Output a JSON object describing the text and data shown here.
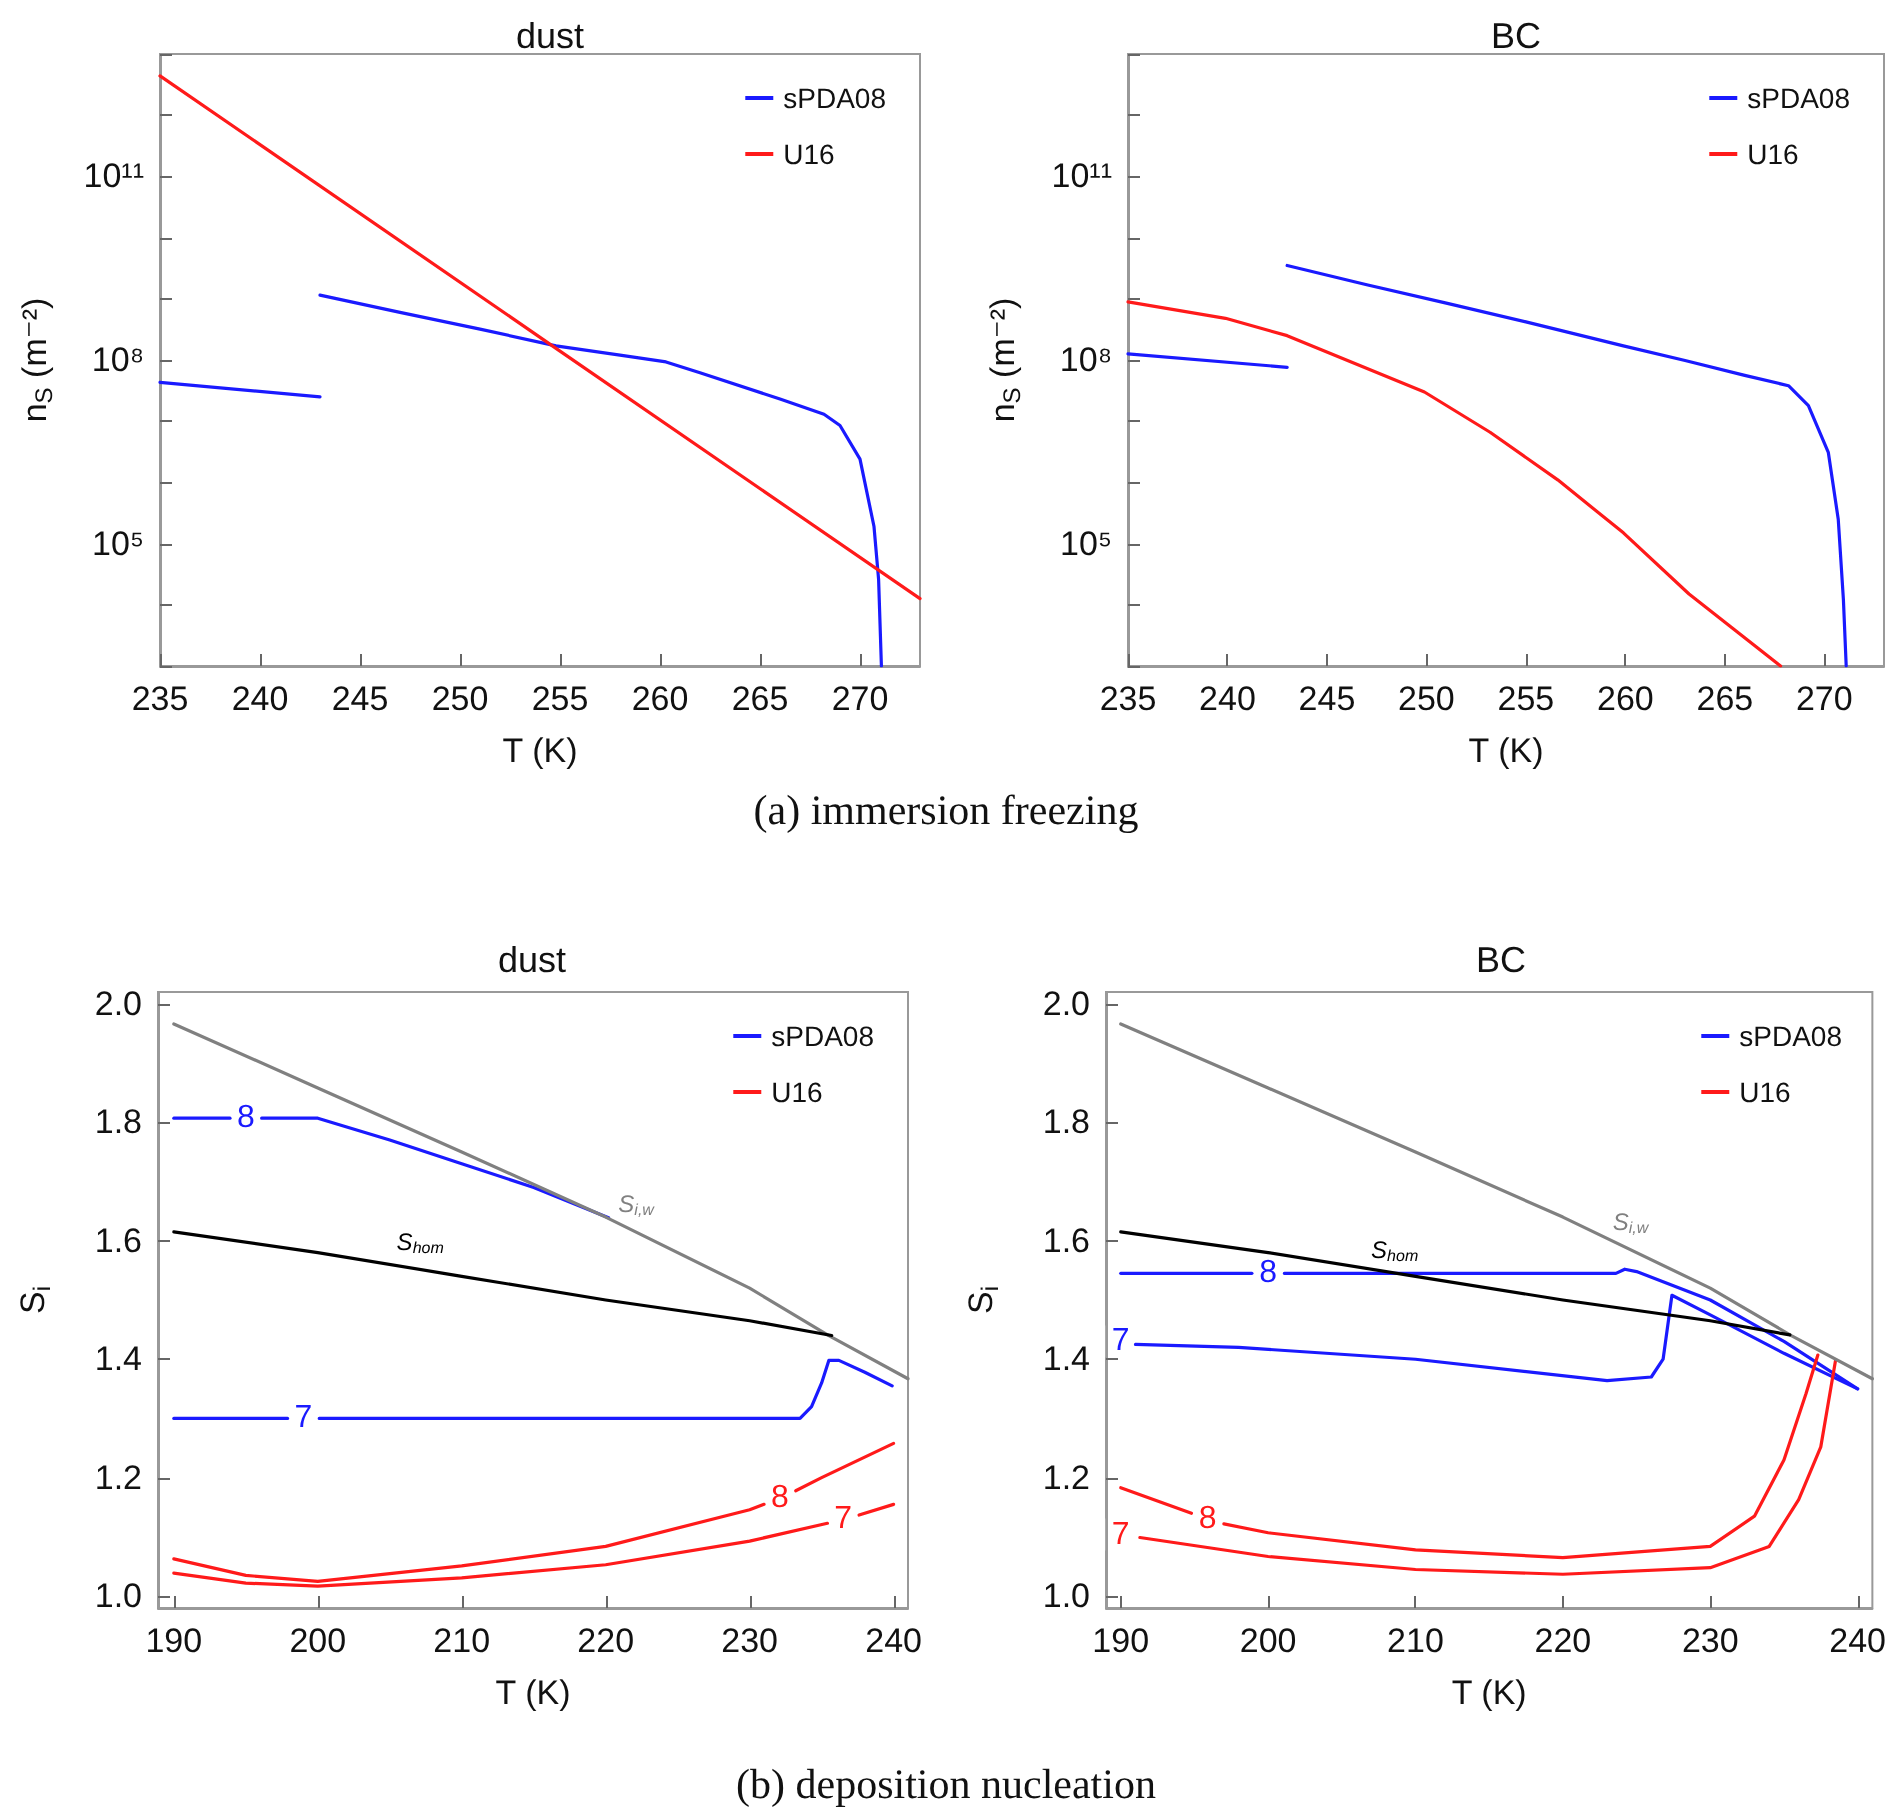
{
  "chart_data": [
    {
      "type": "line",
      "title": "dust",
      "xlabel": "T (K)",
      "ylabel": "n$_{S}$ (m⁻²)",
      "log": "y",
      "legend": "top right",
      "xlim": [
        235,
        273
      ],
      "xticks": [
        235,
        240,
        245,
        250,
        255,
        260,
        265,
        270
      ],
      "ylim": [
        1000,
        10000000000000.0
      ],
      "yticks": [
        {
          "value": 1000,
          "label": null
        },
        {
          "value": 10000,
          "label": null
        },
        {
          "value": 100000,
          "label": "10⁵"
        },
        {
          "value": 1000000,
          "label": null
        },
        {
          "value": 10000000,
          "label": null
        },
        {
          "value": 100000000,
          "label": "10⁸"
        },
        {
          "value": 1000000000,
          "label": null
        },
        {
          "value": 10000000000,
          "label": null
        },
        {
          "value": 100000000000,
          "label": "10¹¹"
        },
        {
          "value": 1000000000000,
          "label": null
        },
        {
          "value": 10000000000000,
          "label": null
        }
      ],
      "series": [
        {
          "name": "sPDA08",
          "color": "#1a1aff",
          "x": [
            235,
            243
          ],
          "values": [
            43000000.0,
            25000000.0
          ]
        },
        {
          "color": "#1a1aff",
          "x": [
            243,
            247,
            251,
            254.8,
            258,
            260.3,
            262,
            266,
            268.2,
            269,
            270,
            270.7,
            270.93,
            271.07
          ],
          "values": [
            1150000000.0,
            600000000.0,
            320000000.0,
            170000000.0,
            120000000.0,
            93000000.0,
            62000000.0,
            23000000.0,
            13000000.0,
            8500000.0,
            2400000.0,
            190000.0,
            26000.0,
            1000
          ]
        },
        {
          "name": "U16",
          "color": "#ff1a1a",
          "x": [
            235,
            255,
            273
          ],
          "values": [
            4400000000000.0,
            140000000.0,
            12600.0
          ]
        }
      ],
      "annotations": [
        "(a) immersion freezing"
      ]
    },
    {
      "type": "line",
      "title": "BC",
      "xlabel": "T (K)",
      "ylabel": "n$_{S}$ (m⁻²)",
      "log": "y",
      "legend": "top right",
      "xlim": [
        235,
        273
      ],
      "xticks": [
        235,
        240,
        245,
        250,
        255,
        260,
        265,
        270
      ],
      "ylim": [
        1000,
        10000000000000.0
      ],
      "yticks": [
        {
          "value": 1000,
          "label": null
        },
        {
          "value": 10000,
          "label": null
        },
        {
          "value": 100000,
          "label": "10⁵"
        },
        {
          "value": 1000000,
          "label": null
        },
        {
          "value": 10000000,
          "label": null
        },
        {
          "value": 100000000,
          "label": "10⁸"
        },
        {
          "value": 1000000000,
          "label": null
        },
        {
          "value": 10000000000,
          "label": null
        },
        {
          "value": 100000000000,
          "label": "10¹¹"
        },
        {
          "value": 1000000000000,
          "label": null
        },
        {
          "value": 10000000000000,
          "label": null
        }
      ],
      "series": [
        {
          "name": "sPDA08",
          "color": "#1a1aff",
          "x": [
            235,
            243
          ],
          "values": [
            126000000.0,
            76000000.0
          ]
        },
        {
          "color": "#1a1aff",
          "x": [
            243,
            247,
            251,
            255,
            259.9,
            263,
            266,
            268.2,
            269.2,
            270.2,
            270.7,
            270.96,
            271.1
          ],
          "values": [
            3500000000.0,
            1700000000.0,
            850000000.0,
            420000000.0,
            170000000.0,
            98000000.0,
            56000000.0,
            38000000.0,
            18000000.0,
            3100000.0,
            250000.0,
            12000.0,
            1000
          ]
        },
        {
          "name": "U16",
          "color": "#ff1a1a",
          "x": [
            235,
            239.9,
            243,
            249.9,
            253.2,
            256.6,
            259.9,
            263.2,
            267.8
          ],
          "values": [
            890000000.0,
            480000000.0,
            250000000.0,
            30000000.0,
            6600000.0,
            1100000.0,
            150000.0,
            15000.0,
            1000
          ]
        }
      ]
    },
    {
      "type": "line",
      "title": "dust",
      "xlabel": "T (K)",
      "ylabel": "S$_{i}$",
      "legend": "top right",
      "xlim": [
        188.9,
        241
      ],
      "xticks": [
        190,
        200,
        210,
        220,
        230,
        240
      ],
      "ylim": [
        0.98,
        2.02
      ],
      "yticks": [
        {
          "value": 1,
          "label": "1.0"
        },
        1.2,
        1.4,
        1.6,
        1.8,
        {
          "value": 2,
          "label": "2.0"
        }
      ],
      "series": [
        {
          "name": "sPDA08",
          "color": "#1a1aff",
          "x": [
            190,
            193.9
          ],
          "values": [
            1.807,
            1.807
          ]
        },
        {
          "color": "#1a1aff",
          "x": [
            196.1,
            200,
            205,
            210,
            215,
            220.2
          ],
          "values": [
            1.807,
            1.807,
            1.77,
            1.73,
            1.69,
            1.639
          ]
        },
        {
          "color": "#1a1aff",
          "x": [
            190,
            197.9
          ],
          "values": [
            1.3,
            1.3
          ]
        },
        {
          "color": "#1a1aff",
          "x": [
            200.1,
            233.5,
            234.3,
            235,
            235.5,
            236.2,
            238,
            239.9
          ],
          "values": [
            1.3,
            1.3,
            1.32,
            1.36,
            1.398,
            1.398,
            1.378,
            1.355
          ]
        },
        {
          "name": "U16",
          "color": "#ff1a1a",
          "x": [
            190,
            195,
            200,
            210,
            220,
            230,
            231
          ],
          "values": [
            1.063,
            1.035,
            1.025,
            1.051,
            1.084,
            1.146,
            1.155
          ]
        },
        {
          "color": "#ff1a1a",
          "x": [
            233.2,
            235,
            240
          ],
          "values": [
            1.178,
            1.2,
            1.258
          ]
        },
        {
          "color": "#ff1a1a",
          "x": [
            190,
            195,
            200,
            210,
            220,
            230,
            235.4
          ],
          "values": [
            1.039,
            1.022,
            1.017,
            1.031,
            1.053,
            1.093,
            1.123
          ]
        },
        {
          "color": "#ff1a1a",
          "x": [
            237.6,
            240
          ],
          "values": [
            1.137,
            1.155
          ]
        },
        {
          "color": "#808080",
          "x": [
            190,
            200,
            210,
            220,
            230,
            235.5,
            241
          ],
          "values": [
            1.966,
            1.858,
            1.75,
            1.64,
            1.52,
            1.44,
            1.367
          ]
        },
        {
          "color": "#000000",
          "x": [
            190,
            200,
            210,
            220,
            230,
            235.7
          ],
          "values": [
            1.615,
            1.58,
            1.54,
            1.5,
            1.465,
            1.44
          ]
        }
      ],
      "annotations": [
        {
          "text": "8",
          "x": 195,
          "y": 1.807
        },
        {
          "text": "7",
          "x": 199,
          "y": 1.3
        },
        {
          "text": "8",
          "x": 232.1,
          "y": 1.165
        },
        {
          "text": "7",
          "x": 236.5,
          "y": 1.13
        },
        {
          "text": "S$_{i,w}$",
          "x": 221,
          "y": 1.628
        },
        {
          "text": "S$_{hom}$",
          "x": 206,
          "y": 1.564
        },
        "(b) deposition nucleation"
      ]
    },
    {
      "type": "line",
      "title": "BC",
      "xlabel": "T (K)",
      "ylabel": "S$_{i}$",
      "legend": "top right",
      "xlim": [
        189,
        241
      ],
      "xticks": [
        190,
        200,
        210,
        220,
        230,
        240
      ],
      "ylim": [
        0.98,
        2.02
      ],
      "yticks": [
        {
          "value": 1,
          "label": "1.0"
        },
        1.2,
        1.4,
        1.6,
        1.8,
        {
          "value": 2,
          "label": "2.0"
        }
      ],
      "series": [
        {
          "name": "sPDA08",
          "color": "#1a1aff",
          "x": [
            190,
            198.9
          ],
          "values": [
            1.545,
            1.545
          ]
        },
        {
          "color": "#1a1aff",
          "x": [
            201.1,
            223.6,
            224.2,
            225,
            230,
            235,
            240
          ],
          "values": [
            1.545,
            1.545,
            1.552,
            1.548,
            1.5,
            1.43,
            1.35
          ]
        },
        {
          "color": "#1a1aff",
          "x": [
            191,
            198,
            210,
            223,
            226,
            226.8,
            227.1,
            227.4,
            230,
            235,
            240
          ],
          "values": [
            1.425,
            1.42,
            1.4,
            1.364,
            1.37,
            1.4,
            1.454,
            1.508,
            1.475,
            1.41,
            1.35
          ]
        },
        {
          "name": "U16",
          "color": "#ff1a1a",
          "x": [
            190,
            194.8
          ],
          "values": [
            1.183,
            1.14
          ]
        },
        {
          "color": "#ff1a1a",
          "x": [
            197,
            200,
            210,
            220,
            230,
            233,
            235,
            236.5,
            237.3
          ],
          "values": [
            1.122,
            1.107,
            1.078,
            1.065,
            1.084,
            1.135,
            1.23,
            1.342,
            1.407
          ]
        },
        {
          "color": "#ff1a1a",
          "x": [
            191.3,
            200,
            210,
            220,
            230,
            234,
            236,
            237.5,
            238.5
          ],
          "values": [
            1.099,
            1.067,
            1.045,
            1.037,
            1.048,
            1.084,
            1.163,
            1.252,
            1.398
          ]
        },
        {
          "color": "#808080",
          "x": [
            190,
            200,
            210,
            220,
            230,
            235.5,
            241
          ],
          "values": [
            1.966,
            1.858,
            1.75,
            1.64,
            1.52,
            1.44,
            1.367
          ]
        },
        {
          "color": "#000000",
          "x": [
            190,
            200,
            210,
            220,
            230,
            235.4
          ],
          "values": [
            1.615,
            1.58,
            1.54,
            1.5,
            1.465,
            1.441
          ]
        }
      ],
      "annotations": [
        {
          "text": "8",
          "x": 200,
          "y": 1.545
        },
        {
          "text": "7",
          "x": 190,
          "y": 1.43
        },
        {
          "text": "8",
          "x": 195.9,
          "y": 1.131
        },
        {
          "text": "7",
          "x": 190,
          "y": 1.104
        },
        {
          "text": "S$_{i,w}$",
          "x": 223.5,
          "y": 1.598
        },
        {
          "text": "S$_{hom}$",
          "x": 207.5,
          "y": 1.55
        }
      ]
    }
  ]
}
